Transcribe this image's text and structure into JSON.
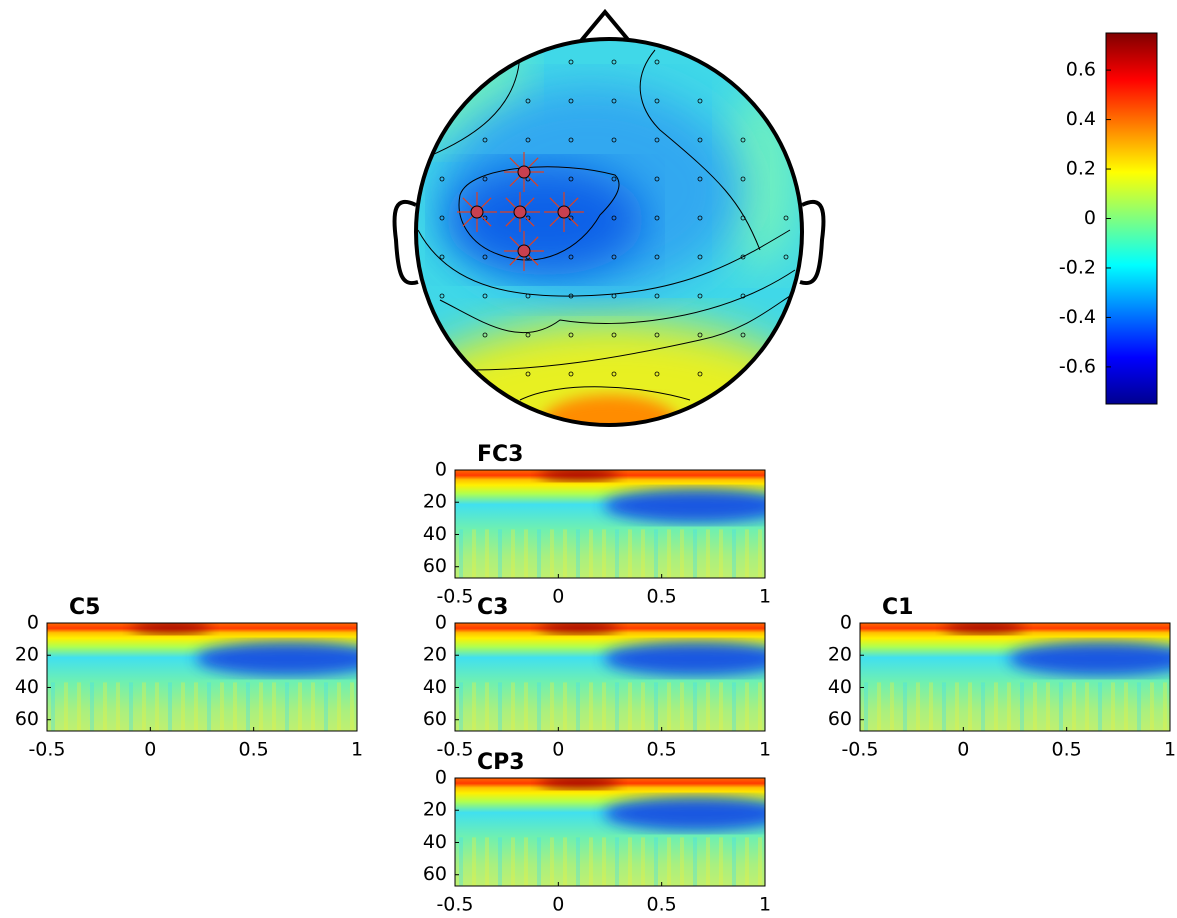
{
  "chart_data": [
    {
      "type": "colorbar",
      "colormap": "jet",
      "clim": [
        -0.75,
        0.75
      ],
      "cticks": [
        0.6,
        0.4,
        0.2,
        0,
        -0.2,
        -0.4,
        -0.6
      ]
    },
    {
      "type": "heatmap",
      "title": "FC3",
      "xlim": [
        -0.5,
        1
      ],
      "ylim": [
        0,
        67
      ],
      "xticks": [
        -0.5,
        0,
        0.5,
        1
      ],
      "yticks": [
        0,
        20,
        40,
        60
      ]
    },
    {
      "type": "heatmap",
      "title": "C5",
      "xlim": [
        -0.5,
        1
      ],
      "ylim": [
        0,
        67
      ],
      "xticks": [
        -0.5,
        0,
        0.5,
        1
      ],
      "yticks": [
        0,
        20,
        40,
        60
      ]
    },
    {
      "type": "heatmap",
      "title": "C3",
      "xlim": [
        -0.5,
        1
      ],
      "ylim": [
        0,
        67
      ],
      "xticks": [
        -0.5,
        0,
        0.5,
        1
      ],
      "yticks": [
        0,
        20,
        40,
        60
      ]
    },
    {
      "type": "heatmap",
      "title": "C1",
      "xlim": [
        -0.5,
        1
      ],
      "ylim": [
        0,
        67
      ],
      "xticks": [
        -0.5,
        0,
        0.5,
        1
      ],
      "yticks": [
        0,
        20,
        40,
        60
      ]
    },
    {
      "type": "heatmap",
      "title": "CP3",
      "xlim": [
        -0.5,
        1
      ],
      "ylim": [
        0,
        67
      ],
      "xticks": [
        -0.5,
        0,
        0.5,
        1
      ],
      "yticks": [
        0,
        20,
        40,
        60
      ]
    }
  ]
}
